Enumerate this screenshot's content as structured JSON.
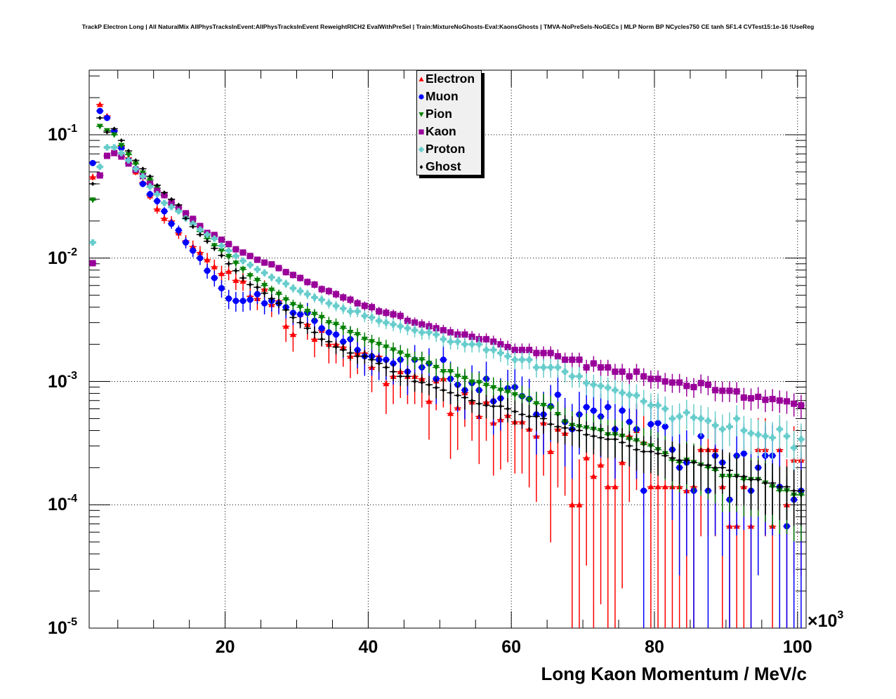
{
  "chart_data": {
    "type": "scatter",
    "title": "TrackP Electron Long | All NaturalMix AllPhysTracksInEvent:AllPhysTracksInEvent ReweightRICH2 EvalWithPreSel | Train:MixtureNoGhosts-Eval:KaonsGhosts | TMVA-NoPreSels-NoGECs | MLP Norm BP NCycles750 CE tanh SF1.4 CVTest15:1e-16 !UseReg",
    "xlabel": "Long Kaon Momentum / MeV/c",
    "x_multiplier_label": "×10",
    "x_multiplier_exp": "3",
    "ylabel": "",
    "xlim": [
      1,
      101.2
    ],
    "ylim": [
      1e-05,
      0.334
    ],
    "yscale": "log",
    "grid": true,
    "legend_position": "top-center",
    "x_ticks": [
      {
        "value": 20,
        "label": "20"
      },
      {
        "value": 40,
        "label": "40"
      },
      {
        "value": 60,
        "label": "60"
      },
      {
        "value": 80,
        "label": "80"
      },
      {
        "value": 100,
        "label": "100"
      }
    ],
    "y_ticks": [
      {
        "value": 0.1,
        "base": "10",
        "exp": "-1"
      },
      {
        "value": 0.01,
        "base": "10",
        "exp": "-2"
      },
      {
        "value": 0.001,
        "base": "10",
        "exp": "-3"
      },
      {
        "value": 0.0001,
        "base": "10",
        "exp": "-4"
      },
      {
        "value": 1e-05,
        "base": "10",
        "exp": "-5"
      }
    ],
    "bin_start": 1.5,
    "bin_width": 1,
    "series": [
      {
        "name": "Electron",
        "color": "#ff0000",
        "marker": "triangle-up",
        "error_scale": 0.018,
        "values": [
          0.0455,
          0.176,
          0.142,
          0.108,
          0.081,
          0.065,
          0.05,
          0.041,
          0.032,
          0.025,
          0.021,
          0.02,
          0.016,
          0.0138,
          0.0124,
          0.0111,
          0.0097,
          0.0085,
          0.0075,
          0.0078,
          0.0066,
          0.0065,
          0.0049,
          0.0047,
          0.0056,
          0.0042,
          0.0045,
          0.0028,
          0.0024,
          0.0035,
          0.0029,
          0.0022,
          0.0026,
          0.002,
          0.002,
          0.0019,
          0.0016,
          0.0017,
          0.0017,
          0.0013,
          0.0016,
          0.00096,
          0.0011,
          0.0012,
          0.0011,
          0.0011,
          0.00105,
          0.00069,
          0.00101,
          0.00105,
          0.00055,
          0.00061,
          0.00081,
          0.00068,
          0.00052,
          0.00068,
          0.00046,
          0.00049,
          0.00053,
          0.00047,
          0.00047,
          0.00041,
          0.00036,
          0.00046,
          0.00027,
          0.00041,
          0.00038,
          0.0001,
          0.0001,
          0.00024,
          0.00017,
          0.00021,
          0.00014,
          0.00014,
          0.00022,
          0.00036,
          0.0004,
          0.00032,
          0.00014,
          0.00014,
          0.00014,
          0.00014,
          0.00014,
          0.00013,
          0.00014,
          0.00028,
          0.00028,
          0.00028,
          0.00014,
          6.7e-05,
          6.7e-05,
          0.00014,
          6.7e-05,
          0.00028,
          0.00028,
          6.7e-05,
          0.00028,
          0.0001,
          0.00023,
          0.00023
        ]
      },
      {
        "name": "Muon",
        "color": "#0000ff",
        "marker": "circle",
        "error_scale": 0.015,
        "values": [
          0.059,
          0.156,
          0.137,
          0.107,
          0.078,
          0.062,
          0.053,
          0.04,
          0.033,
          0.029,
          0.024,
          0.019,
          0.0168,
          0.0134,
          0.0115,
          0.01,
          0.0079,
          0.0069,
          0.0057,
          0.0047,
          0.0045,
          0.0045,
          0.0046,
          0.0051,
          0.0043,
          0.0045,
          0.0043,
          0.004,
          0.0036,
          0.0035,
          0.0036,
          0.0031,
          0.0027,
          0.0025,
          0.0024,
          0.0021,
          0.0022,
          0.0018,
          0.0016,
          0.0016,
          0.0015,
          0.0015,
          0.0014,
          0.0015,
          0.0012,
          0.0015,
          0.0013,
          0.0014,
          0.00105,
          0.0015,
          0.00105,
          0.00094,
          0.00085,
          0.00097,
          0.00085,
          0.00105,
          0.00069,
          0.00073,
          0.00088,
          0.0009,
          0.00076,
          0.00072,
          0.00054,
          0.00054,
          0.00063,
          0.00078,
          0.00047,
          0.00041,
          0.00054,
          0.00062,
          0.00058,
          0.00052,
          0.00062,
          0.00041,
          0.00058,
          0.00047,
          0.00041,
          0.00013,
          0.00045,
          0.00046,
          0.00043,
          0.00028,
          0.0002,
          0.00022,
          0.00013,
          0.00036,
          0.00013,
          0.00025,
          0.00022,
          0.00011,
          0.00025,
          0.00026,
          0.00013,
          0.0002,
          0.00025,
          0.00025,
          0.00014,
          6.7e-05,
          0.00011,
          0.00013
        ]
      },
      {
        "name": "Pion",
        "color": "#008000",
        "marker": "triangle-down",
        "error_scale": 0.004,
        "values": [
          0.0296,
          0.117,
          0.108,
          0.1,
          0.082,
          0.069,
          0.058,
          0.049,
          0.043,
          0.037,
          0.032,
          0.027,
          0.024,
          0.021,
          0.019,
          0.0164,
          0.0144,
          0.0126,
          0.0115,
          0.0103,
          0.0091,
          0.0081,
          0.0072,
          0.0066,
          0.006,
          0.0055,
          0.0051,
          0.0046,
          0.0042,
          0.004,
          0.0037,
          0.0035,
          0.0033,
          0.003,
          0.0029,
          0.0027,
          0.0025,
          0.0024,
          0.0022,
          0.0021,
          0.002,
          0.0019,
          0.0018,
          0.0017,
          0.0016,
          0.0015,
          0.0015,
          0.0014,
          0.0013,
          0.0012,
          0.0012,
          0.0011,
          0.00106,
          0.00099,
          0.00098,
          0.00093,
          0.00089,
          0.00085,
          0.00082,
          0.00078,
          0.00075,
          0.00071,
          0.00066,
          0.00064,
          0.00061,
          0.00054,
          0.00047,
          0.00044,
          0.00043,
          0.00042,
          0.00041,
          0.0004,
          0.00037,
          0.00037,
          0.00036,
          0.00034,
          0.00033,
          0.00031,
          0.0003,
          0.00028,
          0.00026,
          0.00023,
          0.00022,
          0.00023,
          0.00022,
          0.00021,
          0.0002,
          0.00019,
          0.00017,
          0.00017,
          0.00017,
          0.00016,
          0.00016,
          0.00016,
          0.00015,
          0.00014,
          0.00013,
          0.00013,
          0.00012,
          0.00012
        ]
      },
      {
        "name": "Kaon",
        "color": "#990099",
        "marker": "square",
        "error_scale": 0.003,
        "values": [
          0.0091,
          0.0468,
          0.0675,
          0.0711,
          0.0666,
          0.0585,
          0.052,
          0.0462,
          0.04,
          0.0351,
          0.0324,
          0.0281,
          0.0256,
          0.0231,
          0.0208,
          0.0182,
          0.016,
          0.0154,
          0.0141,
          0.013,
          0.0118,
          0.0111,
          0.0104,
          0.0097,
          0.0092,
          0.0089,
          0.0083,
          0.0077,
          0.0073,
          0.0069,
          0.0064,
          0.0061,
          0.0056,
          0.0054,
          0.0051,
          0.0048,
          0.0046,
          0.0043,
          0.0041,
          0.004,
          0.0037,
          0.0036,
          0.0035,
          0.0034,
          0.0031,
          0.003,
          0.0029,
          0.0028,
          0.0027,
          0.0026,
          0.0025,
          0.0024,
          0.0024,
          0.0023,
          0.0022,
          0.0022,
          0.0021,
          0.002,
          0.0019,
          0.0018,
          0.0018,
          0.0018,
          0.0017,
          0.0017,
          0.0017,
          0.0016,
          0.0015,
          0.0015,
          0.0015,
          0.0013,
          0.0014,
          0.0013,
          0.0013,
          0.0012,
          0.0012,
          0.0011,
          0.0012,
          0.0011,
          0.00105,
          0.00105,
          0.001,
          0.00098,
          0.00098,
          0.00092,
          0.0009,
          0.00097,
          0.00094,
          0.00085,
          0.00084,
          0.00084,
          0.00083,
          0.00074,
          0.00073,
          0.00075,
          0.00071,
          0.00072,
          0.0007,
          0.00069,
          0.00066,
          0.00064
        ]
      },
      {
        "name": "Proton",
        "color": "#66cccc",
        "marker": "cross",
        "error_scale": 0.004,
        "values": [
          0.0134,
          0.055,
          0.079,
          0.079,
          0.071,
          0.062,
          0.053,
          0.046,
          0.038,
          0.033,
          0.028,
          0.026,
          0.024,
          0.021,
          0.019,
          0.017,
          0.0155,
          0.0144,
          0.0126,
          0.0115,
          0.0104,
          0.0095,
          0.0088,
          0.0081,
          0.0076,
          0.007,
          0.0066,
          0.0062,
          0.0057,
          0.0054,
          0.0051,
          0.0048,
          0.0046,
          0.0043,
          0.0041,
          0.0039,
          0.0037,
          0.0037,
          0.0034,
          0.0033,
          0.0031,
          0.003,
          0.0029,
          0.0028,
          0.0027,
          0.0026,
          0.0025,
          0.0025,
          0.0024,
          0.0022,
          0.0021,
          0.0021,
          0.002,
          0.002,
          0.002,
          0.0018,
          0.0018,
          0.0017,
          0.0016,
          0.0015,
          0.0015,
          0.0015,
          0.0013,
          0.0013,
          0.0013,
          0.0013,
          0.0012,
          0.0011,
          0.0011,
          0.00097,
          0.00094,
          0.00092,
          0.00089,
          0.00085,
          0.00081,
          0.00078,
          0.00077,
          0.00069,
          0.00064,
          0.00064,
          0.0006,
          0.0005,
          0.00052,
          0.00056,
          0.00051,
          0.0005,
          0.00048,
          0.00044,
          0.00041,
          0.00043,
          0.0005,
          0.0004,
          0.00038,
          0.00037,
          0.00036,
          0.00035,
          0.00041,
          0.00036,
          0.00029,
          0.00034
        ]
      },
      {
        "name": "Ghost",
        "color": "#000000",
        "marker": "diamond",
        "error_scale": 0.003,
        "values": [
          0.04,
          0.137,
          0.105,
          0.112,
          0.09,
          0.074,
          0.062,
          0.053,
          0.046,
          0.039,
          0.034,
          0.03,
          0.027,
          0.021,
          0.018,
          0.0155,
          0.0137,
          0.012,
          0.0105,
          0.009,
          0.0079,
          0.0069,
          0.0061,
          0.0058,
          0.0052,
          0.0047,
          0.0043,
          0.0038,
          0.0033,
          0.003,
          0.0027,
          0.0025,
          0.0022,
          0.0021,
          0.0019,
          0.0018,
          0.0017,
          0.0016,
          0.0016,
          0.0015,
          0.0014,
          0.0013,
          0.0012,
          0.0011,
          0.0011,
          0.001,
          0.00098,
          0.00094,
          0.00089,
          0.00085,
          0.00081,
          0.00077,
          0.00074,
          0.0007,
          0.00066,
          0.00064,
          0.00063,
          0.00063,
          0.0006,
          0.00057,
          0.00054,
          0.00052,
          0.00052,
          0.0005,
          0.00045,
          0.00043,
          0.00042,
          0.00041,
          0.0004,
          0.00037,
          0.00036,
          0.00035,
          0.00034,
          0.00034,
          0.00032,
          0.0003,
          0.00028,
          0.00027,
          0.00027,
          0.00026,
          0.00025,
          0.00024,
          0.00023,
          0.00023,
          0.00022,
          0.00021,
          0.00021,
          0.0002,
          0.0002,
          0.00019,
          0.00017,
          0.00017,
          0.00016,
          0.00016,
          0.00015,
          0.00015,
          0.00014,
          0.00014,
          0.00013,
          0.00013
        ]
      }
    ]
  }
}
